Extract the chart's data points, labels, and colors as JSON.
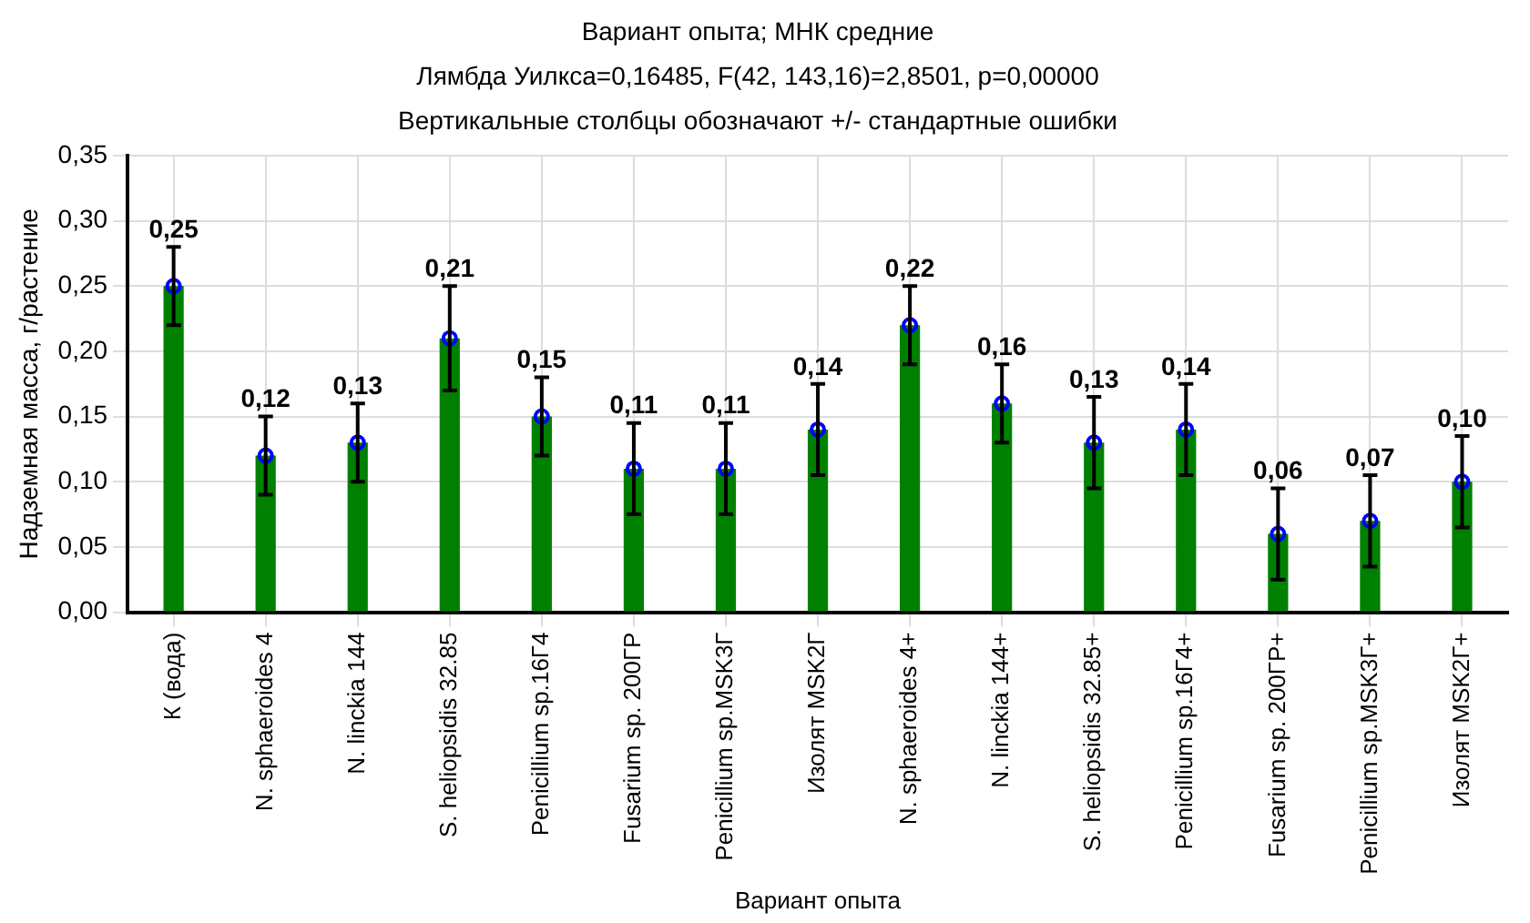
{
  "chart_data": {
    "type": "bar",
    "title": "Вариант опыта; МНК средние",
    "subtitle": "Лямбда Уилкса=0,16485, F(42, 143,16)=2,8501, p=0,00000",
    "annotations": [
      "Вертикальные столбцы обозначают +/- стандартные ошибки"
    ],
    "xlabel": "Вариант опыта",
    "ylabel": "Надземная масса, г/растение",
    "categories": [
      "К (вода)",
      "N. sphaeroides 4",
      "N. linckia 144",
      "S. heliopsidis 32.85",
      "Penicillium sp.16Г4",
      "Fusarium sp. 200ГР",
      "Penicillium sp.MSK3Г",
      "Изолят MSK2Г",
      "N. sphaeroides 4+",
      "N. linckia 144+",
      "S. heliopsidis 32.85+",
      "Penicillium sp.16Г4+",
      "Fusarium sp. 200ГР+",
      "Penicillium sp.MSK3Г+",
      "Изолят MSK2Г+"
    ],
    "series": [
      {
        "color": "#008000",
        "values": [
          0.25,
          0.12,
          0.13,
          0.21,
          0.15,
          0.11,
          0.11,
          0.14,
          0.22,
          0.16,
          0.13,
          0.14,
          0.06,
          0.07,
          0.1
        ],
        "value_labels": [
          "0,25",
          "0,12",
          "0,13",
          "0,21",
          "0,15",
          "0,11",
          "0,11",
          "0,14",
          "0,22",
          "0,16",
          "0,13",
          "0,14",
          "0,06",
          "0,07",
          "0,10"
        ],
        "errors": [
          0.03,
          0.03,
          0.03,
          0.04,
          0.03,
          0.035,
          0.035,
          0.035,
          0.03,
          0.03,
          0.035,
          0.035,
          0.035,
          0.035,
          0.035
        ]
      },
      {
        "type": "scatter",
        "color": "#0000ff",
        "x": [
          "К (вода)",
          "N. sphaeroides 4",
          "N. linckia 144",
          "S. heliopsidis 32.85",
          "Penicillium sp.16Г4",
          "Fusarium sp. 200ГР",
          "Penicillium sp.MSK3Г",
          "Изолят MSK2Г",
          "N. sphaeroides 4+",
          "N. linckia 144+",
          "S. heliopsidis 32.85+",
          "Penicillium sp.16Г4+",
          "Fusarium sp. 200ГР+",
          "Penicillium sp.MSK3Г+",
          "Изолят MSK2Г+"
        ],
        "values": [
          0.25,
          0.12,
          0.13,
          0.21,
          0.15,
          0.11,
          0.11,
          0.14,
          0.22,
          0.16,
          0.13,
          0.14,
          0.06,
          0.07,
          0.1
        ]
      }
    ],
    "marker": "circle",
    "grid": true,
    "ylim": [
      0,
      0.35
    ],
    "yticks": [
      {
        "value": 0,
        "label": "0,00"
      },
      {
        "value": 0.05,
        "label": "0,05"
      },
      {
        "value": 0.1,
        "label": "0,10"
      },
      {
        "value": 0.15,
        "label": "0,15"
      },
      {
        "value": 0.2,
        "label": "0,20"
      },
      {
        "value": 0.25,
        "label": "0,25"
      },
      {
        "value": 0.3,
        "label": "0,30"
      },
      {
        "value": 0.35,
        "label": "0,35"
      }
    ]
  }
}
